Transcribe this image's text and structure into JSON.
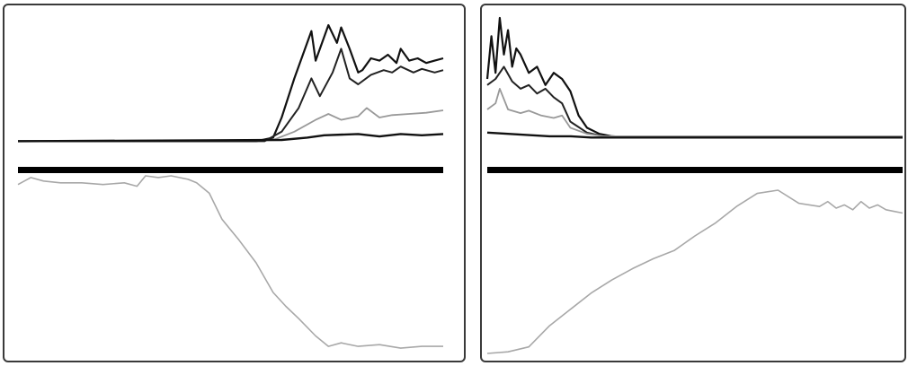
{
  "chart_data": [
    {
      "type": "line",
      "title": "",
      "xlabel": "",
      "ylabel": "",
      "grid": false,
      "legend": "none",
      "xlim": [
        0,
        1
      ],
      "panels": {
        "traces": {
          "ylim": [
            0,
            1
          ],
          "series": [
            {
              "name": "",
              "color": "#111111",
              "x": [
                0,
                0.56,
                0.6,
                0.62,
                0.65,
                0.69,
                0.7,
                0.73,
                0.75,
                0.76,
                0.78,
                0.8,
                0.81,
                0.83,
                0.85,
                0.87,
                0.89,
                0.9,
                0.92,
                0.94,
                0.96,
                0.98,
                1
              ],
              "y": [
                0.02,
                0.02,
                0.05,
                0.22,
                0.55,
                0.95,
                0.7,
                1.0,
                0.85,
                0.98,
                0.8,
                0.6,
                0.62,
                0.72,
                0.7,
                0.75,
                0.68,
                0.8,
                0.7,
                0.72,
                0.68,
                0.7,
                0.72
              ]
            },
            {
              "name": "",
              "color": "#222222",
              "x": [
                0,
                0.58,
                0.62,
                0.66,
                0.69,
                0.71,
                0.74,
                0.76,
                0.78,
                0.8,
                0.83,
                0.86,
                0.88,
                0.9,
                0.93,
                0.95,
                0.98,
                1
              ],
              "y": [
                0.02,
                0.02,
                0.1,
                0.3,
                0.55,
                0.4,
                0.6,
                0.8,
                0.55,
                0.5,
                0.58,
                0.62,
                0.6,
                0.65,
                0.6,
                0.63,
                0.6,
                0.62
              ]
            },
            {
              "name": "",
              "color": "#999999",
              "x": [
                0,
                0.6,
                0.65,
                0.7,
                0.73,
                0.76,
                0.8,
                0.82,
                0.85,
                0.88,
                0.92,
                0.96,
                1
              ],
              "y": [
                0.02,
                0.03,
                0.1,
                0.2,
                0.25,
                0.2,
                0.23,
                0.3,
                0.22,
                0.24,
                0.25,
                0.26,
                0.28
              ]
            },
            {
              "name": "",
              "color": "#111111",
              "x": [
                0,
                0.62,
                0.68,
                0.72,
                0.8,
                0.85,
                0.9,
                0.95,
                1
              ],
              "y": [
                0.02,
                0.03,
                0.05,
                0.07,
                0.08,
                0.06,
                0.08,
                0.07,
                0.08
              ]
            }
          ]
        },
        "bottom": {
          "ylim": [
            0,
            1
          ],
          "series": [
            {
              "name": "",
              "color": "#a8a8a8",
              "x": [
                0,
                0.03,
                0.06,
                0.1,
                0.15,
                0.2,
                0.25,
                0.28,
                0.3,
                0.33,
                0.36,
                0.4,
                0.42,
                0.45,
                0.48,
                0.52,
                0.56,
                0.6,
                0.63,
                0.66,
                0.7,
                0.73,
                0.76,
                0.8,
                0.85,
                0.9,
                0.95,
                1
              ],
              "y": [
                0.95,
                0.99,
                0.97,
                0.96,
                0.96,
                0.95,
                0.96,
                0.94,
                1.0,
                0.99,
                1.0,
                0.98,
                0.96,
                0.9,
                0.75,
                0.63,
                0.5,
                0.33,
                0.25,
                0.18,
                0.08,
                0.02,
                0.04,
                0.02,
                0.03,
                0.01,
                0.02,
                0.02
              ]
            }
          ]
        }
      }
    },
    {
      "type": "line",
      "title": "",
      "xlabel": "",
      "ylabel": "",
      "grid": false,
      "legend": "none",
      "xlim": [
        0,
        1
      ],
      "panels": {
        "traces": {
          "ylim": [
            0,
            1
          ],
          "series": [
            {
              "name": "",
              "color": "#111111",
              "x": [
                0,
                0.01,
                0.02,
                0.03,
                0.04,
                0.05,
                0.06,
                0.07,
                0.08,
                0.1,
                0.12,
                0.14,
                0.16,
                0.18,
                0.2,
                0.22,
                0.24,
                0.27,
                0.3,
                0.35,
                0.4,
                1
              ],
              "y": [
                0.5,
                0.85,
                0.55,
                1.0,
                0.7,
                0.9,
                0.6,
                0.75,
                0.7,
                0.55,
                0.6,
                0.45,
                0.55,
                0.5,
                0.4,
                0.2,
                0.1,
                0.05,
                0.03,
                0.02,
                0.02,
                0.02
              ]
            },
            {
              "name": "",
              "color": "#222222",
              "x": [
                0,
                0.02,
                0.04,
                0.06,
                0.08,
                0.1,
                0.12,
                0.14,
                0.16,
                0.18,
                0.2,
                0.24,
                0.28,
                0.32,
                1
              ],
              "y": [
                0.45,
                0.5,
                0.6,
                0.48,
                0.42,
                0.45,
                0.38,
                0.42,
                0.35,
                0.3,
                0.15,
                0.06,
                0.03,
                0.02,
                0.02
              ]
            },
            {
              "name": "",
              "color": "#999999",
              "x": [
                0,
                0.02,
                0.03,
                0.05,
                0.08,
                0.1,
                0.13,
                0.16,
                0.18,
                0.2,
                0.24,
                0.28,
                1
              ],
              "y": [
                0.25,
                0.3,
                0.42,
                0.25,
                0.22,
                0.24,
                0.2,
                0.18,
                0.2,
                0.1,
                0.05,
                0.03,
                0.03
              ]
            },
            {
              "name": "",
              "color": "#111111",
              "x": [
                0,
                0.05,
                0.1,
                0.15,
                0.2,
                0.25,
                1
              ],
              "y": [
                0.06,
                0.05,
                0.04,
                0.03,
                0.03,
                0.02,
                0.02
              ]
            }
          ]
        },
        "bottom": {
          "ylim": [
            0,
            1
          ],
          "series": [
            {
              "name": "",
              "color": "#a8a8a8",
              "x": [
                0,
                0.05,
                0.1,
                0.15,
                0.2,
                0.25,
                0.3,
                0.35,
                0.4,
                0.45,
                0.5,
                0.55,
                0.6,
                0.65,
                0.7,
                0.75,
                0.8,
                0.82,
                0.84,
                0.86,
                0.88,
                0.9,
                0.92,
                0.94,
                0.96,
                0.98,
                1
              ],
              "y": [
                0.0,
                0.01,
                0.04,
                0.17,
                0.27,
                0.37,
                0.45,
                0.52,
                0.58,
                0.63,
                0.72,
                0.8,
                0.9,
                0.98,
                1.0,
                0.92,
                0.9,
                0.93,
                0.89,
                0.91,
                0.88,
                0.93,
                0.89,
                0.91,
                0.88,
                0.87,
                0.86
              ]
            }
          ]
        }
      }
    }
  ]
}
